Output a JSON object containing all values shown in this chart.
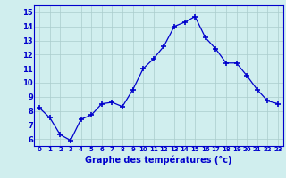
{
  "x": [
    0,
    1,
    2,
    3,
    4,
    5,
    6,
    7,
    8,
    9,
    10,
    11,
    12,
    13,
    14,
    15,
    16,
    17,
    18,
    19,
    20,
    21,
    22,
    23
  ],
  "y": [
    8.2,
    7.5,
    6.3,
    5.9,
    7.4,
    7.7,
    8.5,
    8.6,
    8.3,
    9.5,
    11.0,
    11.7,
    12.6,
    14.0,
    14.3,
    14.7,
    13.2,
    12.4,
    11.4,
    11.4,
    10.5,
    9.5,
    8.7,
    8.5
  ],
  "xlabel": "Graphe des températures (°c)",
  "xlim": [
    -0.5,
    23.5
  ],
  "ylim": [
    5.5,
    15.5
  ],
  "yticks": [
    6,
    7,
    8,
    9,
    10,
    11,
    12,
    13,
    14,
    15
  ],
  "xticks": [
    0,
    1,
    2,
    3,
    4,
    5,
    6,
    7,
    8,
    9,
    10,
    11,
    12,
    13,
    14,
    15,
    16,
    17,
    18,
    19,
    20,
    21,
    22,
    23
  ],
  "line_color": "#0000cc",
  "marker": "+",
  "bg_color": "#d0eeee",
  "grid_color": "#aacccc",
  "tick_label_color": "#0000cc",
  "xlabel_color": "#0000cc"
}
